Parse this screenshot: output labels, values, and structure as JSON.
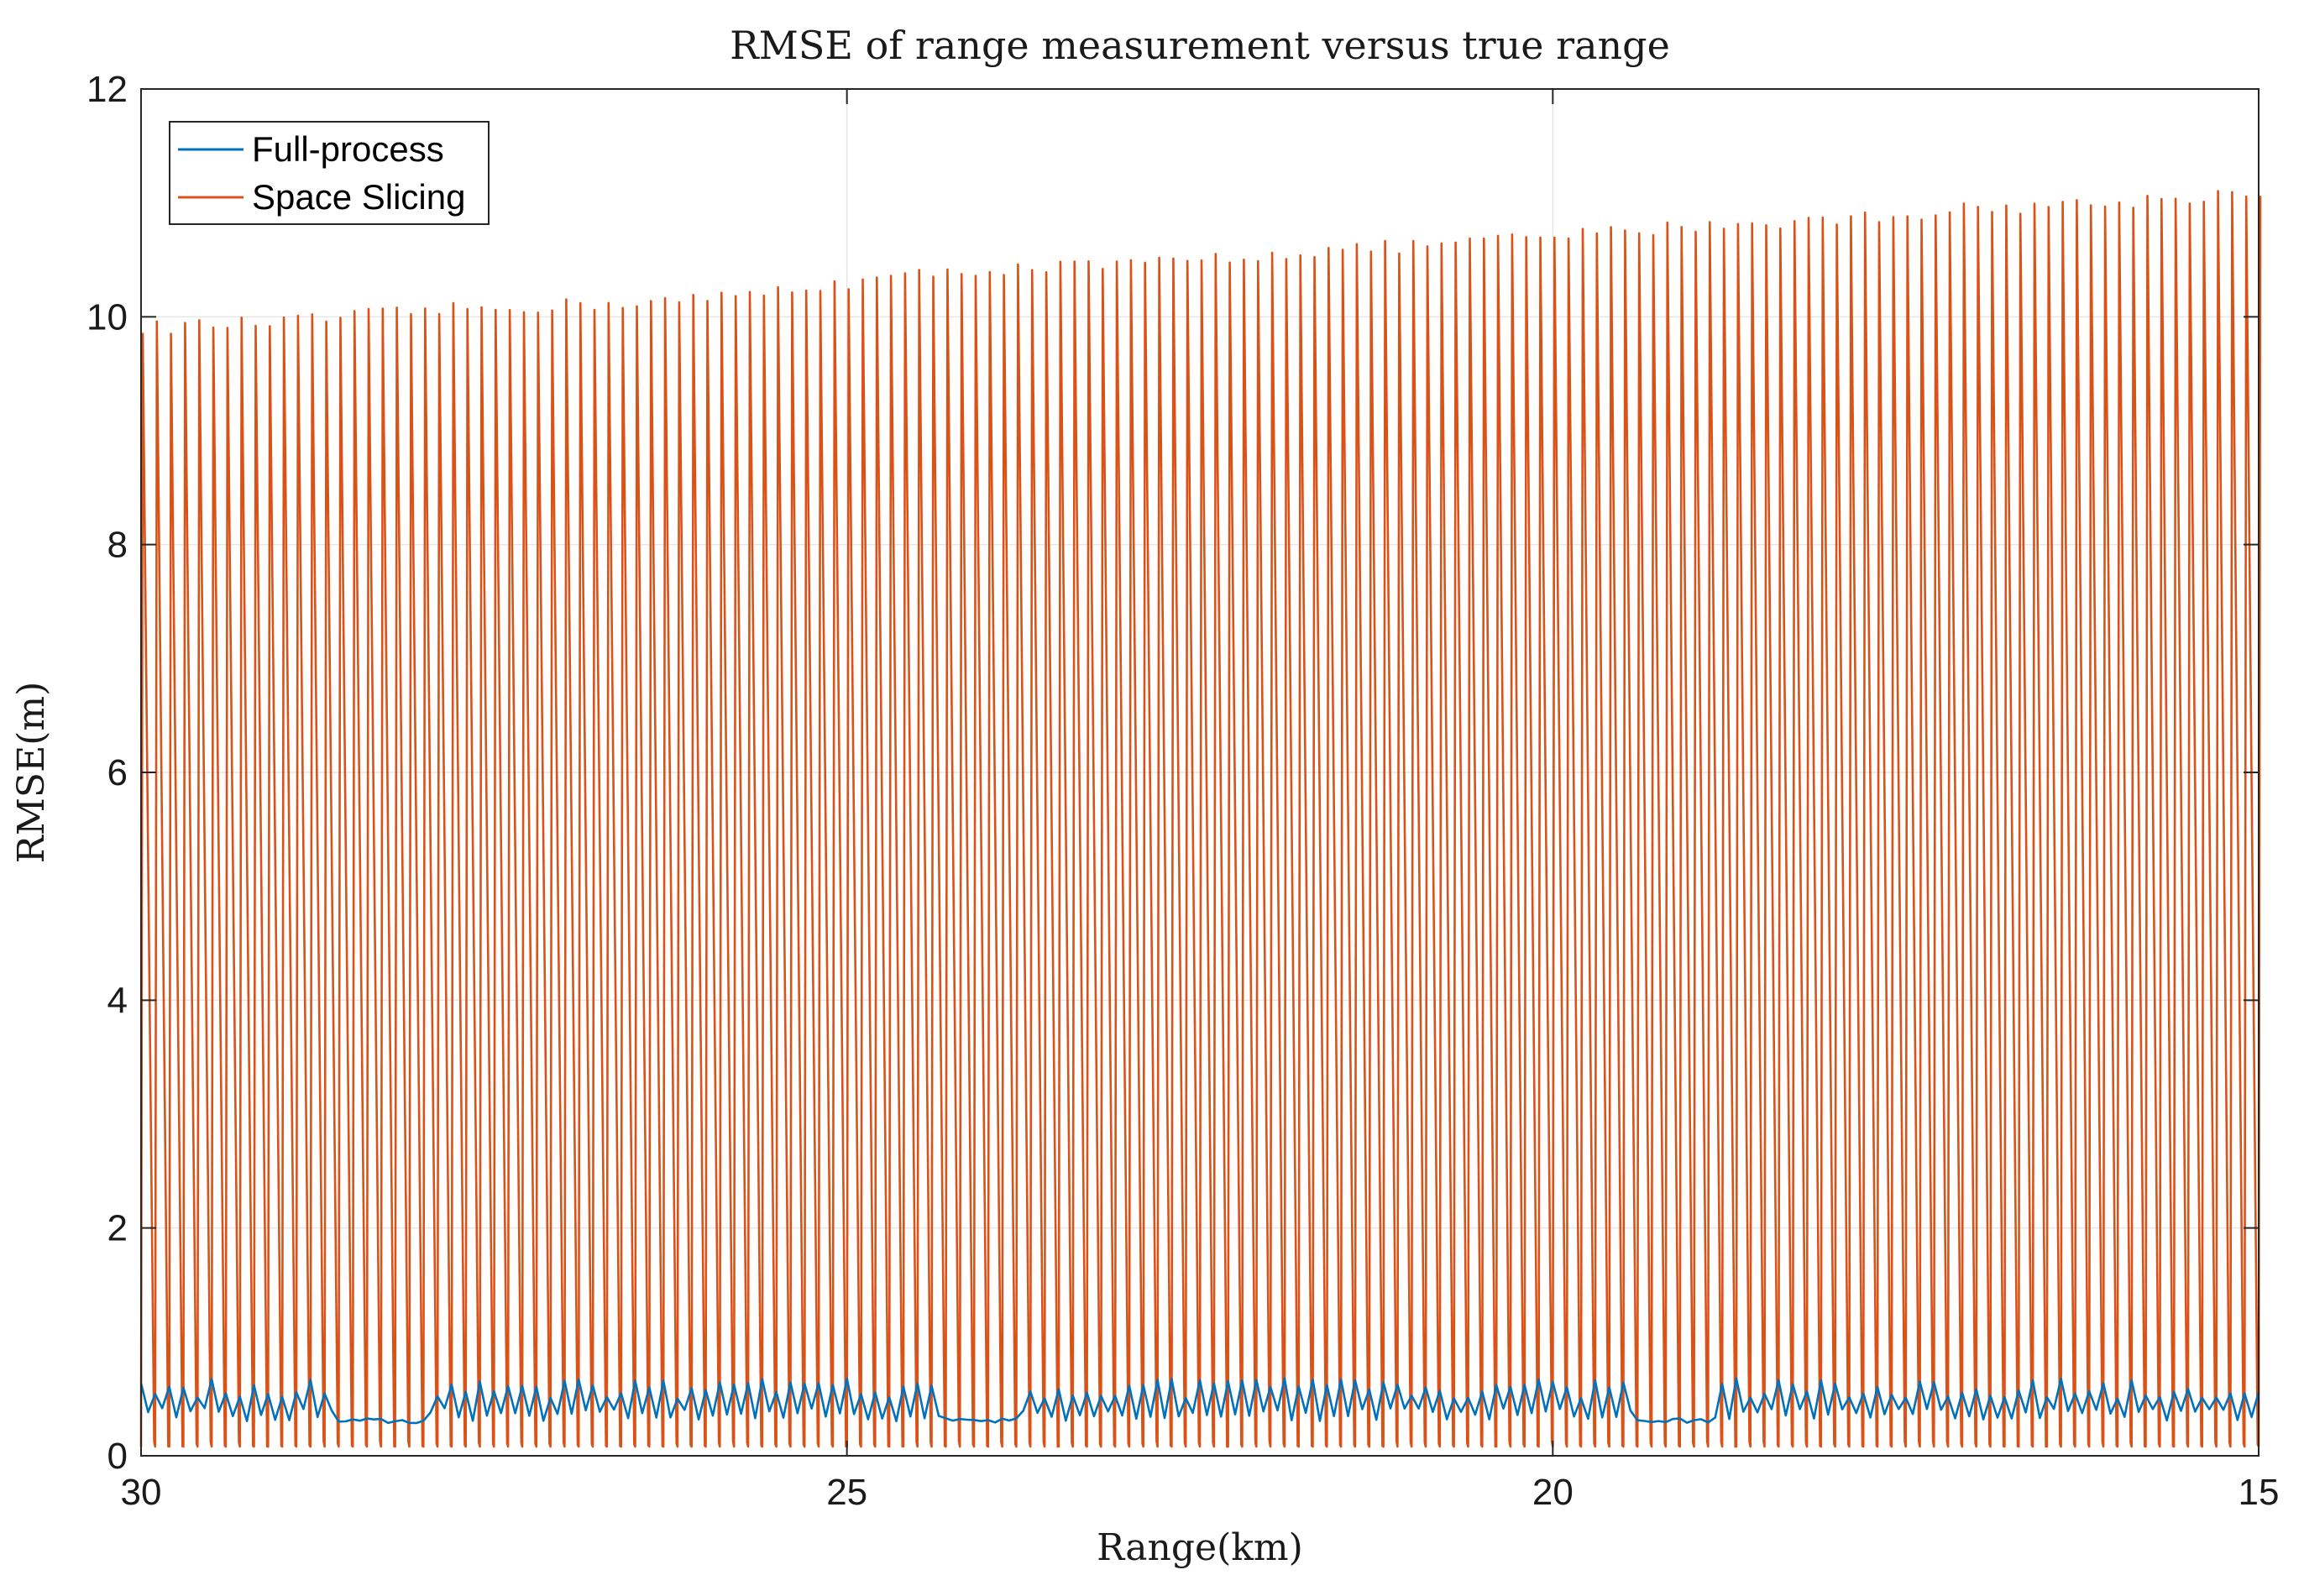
{
  "chart_data": {
    "type": "line",
    "title": "RMSE of range measurement versus true range",
    "xlabel": "Range(km)",
    "ylabel": "RMSE(m)",
    "xlim": [
      30,
      15
    ],
    "x_reversed": true,
    "ylim": [
      0,
      12
    ],
    "xticks": [
      30,
      25,
      20,
      15
    ],
    "yticks": [
      0,
      2,
      4,
      6,
      8,
      10,
      12
    ],
    "grid": true,
    "legend_position": "top-left",
    "series": [
      {
        "name": "Full-process",
        "color": "#0072BD",
        "pattern": "sawtooth",
        "x_start": 30,
        "x_end": 15,
        "period_km": 0.1,
        "envelope": {
          "min": 0.3,
          "max": 0.68
        },
        "low_regions_km": [
          [
            28.6,
            28.0
          ],
          [
            24.3,
            23.8
          ],
          [
            19.4,
            18.9
          ]
        ]
      },
      {
        "name": "Space Slicing",
        "color": "#D95319",
        "pattern": "sawtooth",
        "x_start": 30,
        "x_end": 15,
        "period_km": 0.1,
        "min": 0.08,
        "peaks": [
          [
            30,
            9.9
          ],
          [
            29,
            9.95
          ],
          [
            28,
            10.05
          ],
          [
            27,
            10.1
          ],
          [
            26,
            10.15
          ],
          [
            25,
            10.3
          ],
          [
            24,
            10.42
          ],
          [
            23,
            10.45
          ],
          [
            22,
            10.55
          ],
          [
            21,
            10.62
          ],
          [
            20,
            10.7
          ],
          [
            19,
            10.8
          ],
          [
            18,
            10.85
          ],
          [
            17,
            10.95
          ],
          [
            16,
            11.0
          ],
          [
            15,
            11.1
          ]
        ]
      }
    ]
  }
}
